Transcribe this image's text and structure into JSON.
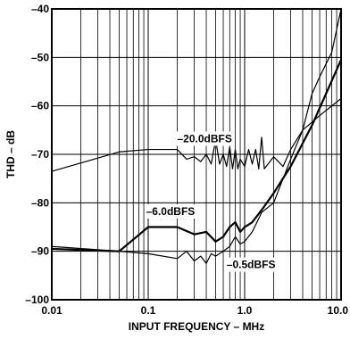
{
  "chart_data": {
    "type": "line",
    "title": "",
    "xlabel": "INPUT FREQUENCY – MHz",
    "ylabel": "THD – dB",
    "x_scale": "log",
    "xlim": [
      0.01,
      10.0
    ],
    "ylim": [
      -100,
      -40
    ],
    "x_ticks": [
      {
        "value": 0.01,
        "label": "0.01"
      },
      {
        "value": 0.1,
        "label": "0.1"
      },
      {
        "value": 1.0,
        "label": "1.0"
      },
      {
        "value": 10.0,
        "label": "10.0"
      }
    ],
    "y_ticks": [
      {
        "value": -40,
        "label": "–40"
      },
      {
        "value": -50,
        "label": "–50"
      },
      {
        "value": -60,
        "label": "–60"
      },
      {
        "value": -70,
        "label": "–70"
      },
      {
        "value": -80,
        "label": "–80"
      },
      {
        "value": -90,
        "label": "–90"
      },
      {
        "value": -100,
        "label": "–100"
      }
    ],
    "grid": true,
    "legend": "none",
    "annotations": [
      {
        "text": "–20.0dBFS",
        "x": 0.2,
        "y": -67.5
      },
      {
        "text": "–6.0dBFS",
        "x": 0.095,
        "y": -82.5
      },
      {
        "text": "–0.5dBFS",
        "x": 0.65,
        "y": -93.5
      }
    ],
    "series": [
      {
        "stroke_width": 1.2,
        "points": [
          [
            0.01,
            -73.5
          ],
          [
            0.05,
            -69.5
          ],
          [
            0.1,
            -69
          ],
          [
            0.2,
            -69
          ],
          [
            0.25,
            -71
          ],
          [
            0.3,
            -70.5
          ],
          [
            0.35,
            -71.5
          ],
          [
            0.4,
            -70
          ],
          [
            0.45,
            -72
          ],
          [
            0.5,
            -67
          ],
          [
            0.55,
            -72
          ],
          [
            0.6,
            -70
          ],
          [
            0.65,
            -72.5
          ],
          [
            0.7,
            -68.5
          ],
          [
            0.75,
            -73
          ],
          [
            0.8,
            -69
          ],
          [
            0.85,
            -73
          ],
          [
            0.9,
            -71
          ],
          [
            1.0,
            -72.5
          ],
          [
            1.1,
            -69
          ],
          [
            1.2,
            -72
          ],
          [
            1.3,
            -69
          ],
          [
            1.4,
            -73
          ],
          [
            1.5,
            -66.5
          ],
          [
            1.6,
            -73
          ],
          [
            2.0,
            -70.5
          ],
          [
            2.5,
            -72.5
          ],
          [
            3.0,
            -69
          ],
          [
            4.0,
            -65
          ],
          [
            6.0,
            -62
          ],
          [
            10.0,
            -58.5
          ]
        ]
      },
      {
        "stroke_width": 2.2,
        "points": [
          [
            0.01,
            -89.5
          ],
          [
            0.05,
            -90
          ],
          [
            0.1,
            -85
          ],
          [
            0.2,
            -85
          ],
          [
            0.3,
            -86.5
          ],
          [
            0.4,
            -86
          ],
          [
            0.5,
            -88
          ],
          [
            0.6,
            -87
          ],
          [
            0.7,
            -85
          ],
          [
            0.8,
            -84
          ],
          [
            0.9,
            -86
          ],
          [
            1.0,
            -85
          ],
          [
            1.1,
            -84.5
          ],
          [
            1.2,
            -84
          ],
          [
            1.5,
            -81.5
          ],
          [
            2.0,
            -78
          ],
          [
            3.0,
            -72.5
          ],
          [
            5.0,
            -64
          ],
          [
            10.0,
            -50.5
          ]
        ]
      },
      {
        "stroke_width": 1.2,
        "points": [
          [
            0.01,
            -89
          ],
          [
            0.05,
            -90
          ],
          [
            0.1,
            -90.5
          ],
          [
            0.2,
            -91.5
          ],
          [
            0.25,
            -90
          ],
          [
            0.3,
            -92
          ],
          [
            0.35,
            -91
          ],
          [
            0.4,
            -92.5
          ],
          [
            0.45,
            -90.5
          ],
          [
            0.5,
            -91
          ],
          [
            0.6,
            -90
          ],
          [
            0.7,
            -89
          ],
          [
            0.8,
            -87
          ],
          [
            0.9,
            -88.5
          ],
          [
            1.0,
            -88
          ],
          [
            1.2,
            -86
          ],
          [
            1.5,
            -82
          ],
          [
            2.0,
            -80
          ],
          [
            3.0,
            -71
          ],
          [
            4.0,
            -65
          ],
          [
            5.0,
            -57.5
          ],
          [
            6.0,
            -54
          ],
          [
            8.0,
            -49
          ],
          [
            10.0,
            -40
          ]
        ]
      }
    ]
  }
}
